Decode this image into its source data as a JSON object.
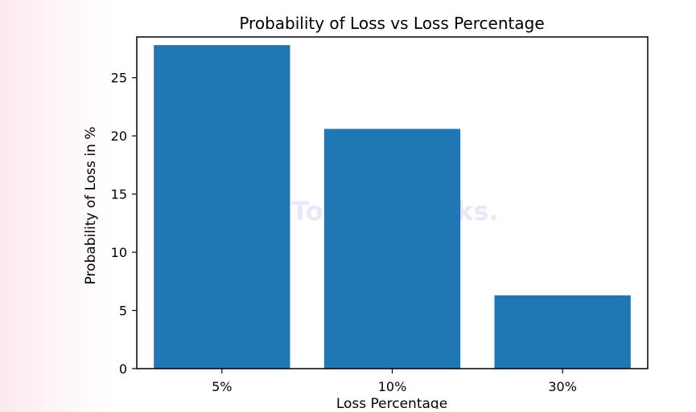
{
  "watermark": "TokenUnlocks.",
  "chart_data": {
    "type": "bar",
    "title": "Probability of Loss vs Loss Percentage",
    "xlabel": "Loss Percentage",
    "ylabel": "Probability of Loss in %",
    "categories": [
      "5%",
      "10%",
      "30%"
    ],
    "values": [
      27.8,
      20.6,
      6.3
    ],
    "ylim": [
      0,
      28.5
    ],
    "yticks": [
      0,
      5,
      10,
      15,
      20,
      25
    ],
    "bar_color": "#1f77b4",
    "grid": false,
    "legend": false
  }
}
